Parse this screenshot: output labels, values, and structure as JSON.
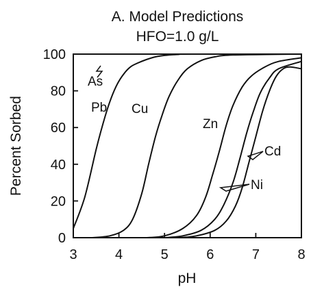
{
  "chart_data": {
    "type": "line",
    "title": "A. Model Predictions",
    "subtitle": "HFO=1.0 g/L",
    "xlabel": "pH",
    "ylabel": "Percent Sorbed",
    "xlim": [
      3,
      8
    ],
    "ylim": [
      0,
      100
    ],
    "xticks": [
      3,
      4,
      5,
      6,
      7,
      8
    ],
    "yticks": [
      0,
      20,
      40,
      60,
      80,
      100
    ],
    "grid": false,
    "series": [
      {
        "name": "As",
        "x": [
          3.0,
          8.0
        ],
        "y": [
          100,
          100
        ]
      },
      {
        "name": "Pb",
        "x": [
          3.0,
          3.25,
          3.5,
          3.65,
          3.8,
          3.95,
          4.1,
          4.25,
          4.4,
          4.6,
          4.8,
          5.0,
          5.3,
          5.6,
          8.0
        ],
        "y": [
          5,
          22,
          48,
          62,
          74,
          83,
          89,
          93,
          95,
          97,
          98.5,
          99.3,
          99.8,
          100,
          100
        ]
      },
      {
        "name": "Cu",
        "x": [
          3.4,
          3.8,
          4.1,
          4.3,
          4.5,
          4.65,
          4.8,
          4.95,
          5.1,
          5.3,
          5.5,
          5.8,
          6.1,
          6.5,
          8.0
        ],
        "y": [
          0,
          1,
          4,
          10,
          24,
          40,
          55,
          67,
          77,
          86,
          92,
          96.5,
          98.5,
          99.5,
          100
        ]
      },
      {
        "name": "Zn",
        "x": [
          4.6,
          5.0,
          5.4,
          5.7,
          5.9,
          6.05,
          6.2,
          6.35,
          6.5,
          6.7,
          6.9,
          7.2,
          7.5,
          8.0
        ],
        "y": [
          0,
          1,
          5,
          12,
          22,
          34,
          47,
          61,
          72,
          82,
          88,
          93,
          96,
          98
        ]
      },
      {
        "name": "Cd",
        "x": [
          5.0,
          5.4,
          5.8,
          6.1,
          6.3,
          6.5,
          6.65,
          6.8,
          6.95,
          7.1,
          7.3,
          7.5,
          8.0
        ],
        "y": [
          0,
          1,
          4,
          10,
          18,
          30,
          43,
          57,
          69,
          79,
          87,
          92,
          96
        ]
      },
      {
        "name": "Ni",
        "x": [
          5.3,
          5.7,
          6.1,
          6.35,
          6.55,
          6.7,
          6.85,
          7.0,
          7.15,
          7.3,
          7.45,
          7.6,
          7.75,
          8.0
        ],
        "y": [
          0,
          1,
          4,
          9,
          17,
          27,
          41,
          55,
          69,
          80,
          88,
          92,
          93,
          92
        ]
      }
    ]
  }
}
